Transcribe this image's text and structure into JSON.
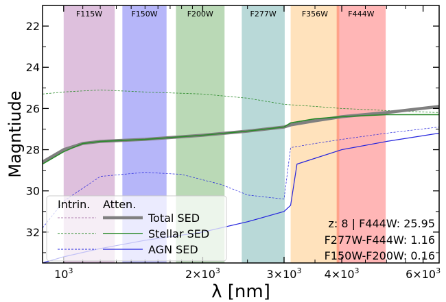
{
  "chart_data": {
    "type": "line",
    "xlabel": "λ [nm]",
    "ylabel": "Magntiude",
    "x_scale": "log",
    "xlim": [
      900,
      6500
    ],
    "ylim": [
      33.5,
      21
    ],
    "y_inverted": true,
    "x_ticks": [
      {
        "value": 1000,
        "base": "10",
        "exp": "3"
      },
      {
        "value": 2000,
        "base": "2×10",
        "exp": "3"
      },
      {
        "value": 3000,
        "base": "3×10",
        "exp": "3"
      },
      {
        "value": 4000,
        "base": "4×10",
        "exp": "3"
      },
      {
        "value": 6000,
        "base": "6×10",
        "exp": "3"
      }
    ],
    "y_ticks": [
      22,
      24,
      26,
      28,
      30,
      32
    ],
    "bands": [
      {
        "name": "F115W",
        "lo": 1000,
        "hi": 1290,
        "color": "#9b3f99"
      },
      {
        "name": "F150W",
        "lo": 1340,
        "hi": 1670,
        "color": "#2222ee"
      },
      {
        "name": "F200W",
        "lo": 1750,
        "hi": 2230,
        "color": "#2e8b22"
      },
      {
        "name": "F277W",
        "lo": 2430,
        "hi": 3010,
        "color": "#2c8b88"
      },
      {
        "name": "F356W",
        "lo": 3100,
        "hi": 3950,
        "color": "#ffa733"
      },
      {
        "name": "F444W",
        "lo": 3900,
        "hi": 4980,
        "color": "#ff2222"
      }
    ],
    "series": [
      {
        "name": "Total SED",
        "color": "#808080",
        "x": [
          900,
          1000,
          1100,
          1200,
          1500,
          2000,
          2500,
          3000,
          3100,
          3500,
          4000,
          5000,
          6500
        ],
        "y": [
          28.6,
          28.0,
          27.7,
          27.6,
          27.5,
          27.3,
          27.1,
          26.9,
          26.8,
          26.6,
          26.4,
          26.2,
          25.9
        ]
      },
      {
        "name": "Stellar SED",
        "color": "#2a8a2a",
        "x": [
          900,
          1000,
          1100,
          1200,
          1500,
          2000,
          2500,
          3000,
          3100,
          3500,
          4000,
          5000,
          6500
        ],
        "y": [
          28.7,
          28.1,
          27.7,
          27.6,
          27.5,
          27.3,
          27.1,
          26.9,
          26.7,
          26.5,
          26.4,
          26.3,
          26.3
        ]
      },
      {
        "name": "AGN SED",
        "color": "#2222dd",
        "x": [
          900,
          1000,
          1200,
          1500,
          2000,
          2500,
          3000,
          3100,
          3200,
          4000,
          5000,
          6500
        ],
        "y": [
          33.5,
          33.2,
          32.8,
          32.4,
          32.0,
          31.5,
          31.0,
          30.7,
          28.7,
          28.0,
          27.6,
          27.2
        ]
      },
      {
        "name": "Stellar SED (intrinsic)",
        "color": "#2a8a2a",
        "x": [
          900,
          1000,
          1200,
          1500,
          2000,
          2500,
          3000,
          3500,
          4000,
          5000,
          6500
        ],
        "y": [
          25.3,
          25.2,
          25.1,
          25.2,
          25.3,
          25.5,
          25.8,
          25.9,
          26.0,
          26.1,
          26.2
        ]
      },
      {
        "name": "AGN SED (intrinsic)",
        "color": "#2222dd",
        "x": [
          900,
          1000,
          1200,
          1500,
          1800,
          2200,
          2500,
          3000,
          3100,
          3500,
          4000,
          5000,
          6500
        ],
        "y": [
          31.8,
          30.5,
          29.3,
          29.1,
          29.2,
          29.7,
          30.2,
          30.4,
          27.9,
          27.7,
          27.5,
          27.2,
          26.9
        ]
      }
    ],
    "legend": {
      "placement": "bottom-left",
      "column_headers": [
        "Intrin.",
        "Atten."
      ],
      "entries": [
        "Total SED",
        "Stellar SED",
        "AGN SED"
      ]
    },
    "annotations": [
      "z: 8 | F444W: 25.95",
      "F277W-F444W: 1.16",
      "F150W-F200W: 0.16"
    ]
  }
}
